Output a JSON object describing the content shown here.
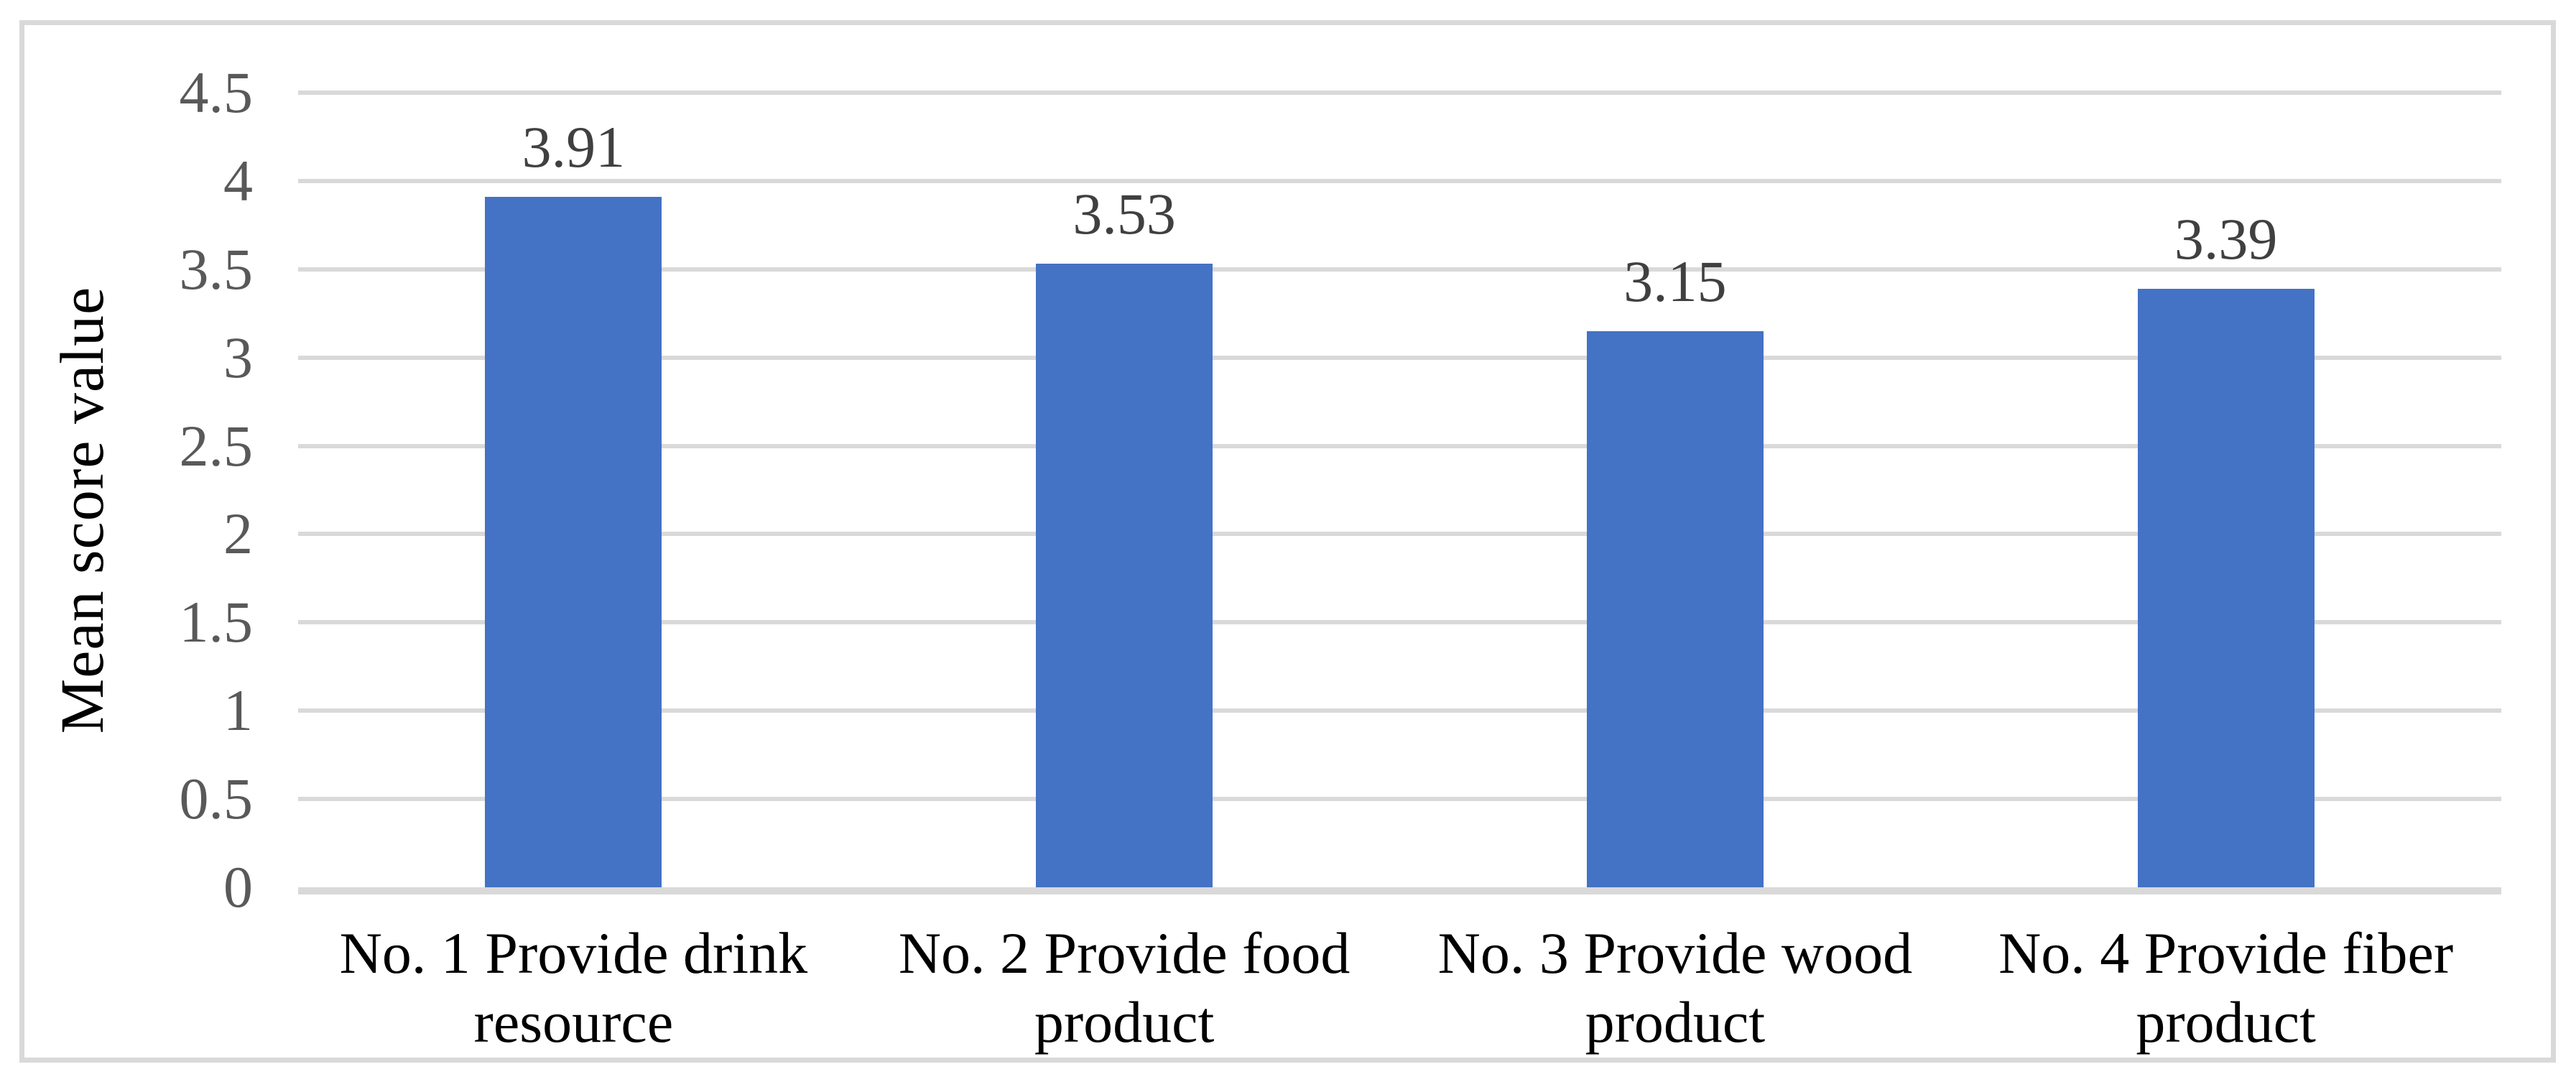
{
  "chart_data": {
    "type": "bar",
    "title": "",
    "xlabel": "",
    "ylabel": "Mean score value",
    "categories": [
      "No. 1 Provide drink resource",
      "No. 2 Provide food product",
      "No. 3 Provide wood product",
      "No. 4 Provide fiber product"
    ],
    "values": [
      3.91,
      3.53,
      3.15,
      3.39
    ],
    "value_labels": [
      "3.91",
      "3.53",
      "3.15",
      "3.39"
    ],
    "yticks": [
      "4.5",
      "4",
      "3.5",
      "3",
      "2.5",
      "2",
      "1.5",
      "1",
      "0.5",
      "0"
    ],
    "ylim": [
      0,
      4.5
    ],
    "grid": "horizontal",
    "legend": "none",
    "colors": {
      "bar": "#4472C4",
      "gridline": "#D9D9D9",
      "axis_line": "#D9D9D9",
      "frame_border": "#D9D9D9",
      "tick_label": "#595959",
      "value_label": "#404040",
      "category_label": "#000000",
      "y_title": "#000000",
      "background": "#FFFFFF"
    }
  }
}
